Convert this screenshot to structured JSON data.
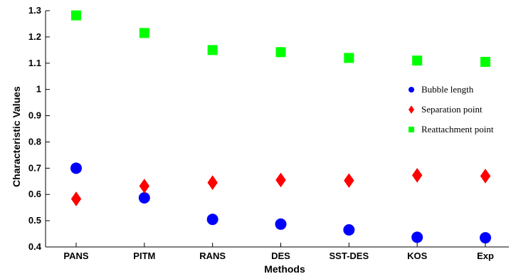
{
  "chart_data": {
    "type": "scatter",
    "xlabel": "Methods",
    "ylabel": "Characteristic Values",
    "categories": [
      "PANS",
      "PITM",
      "RANS",
      "DES",
      "SST-DES",
      "KOS",
      "Exp"
    ],
    "ylim": [
      0.4,
      1.3
    ],
    "yticks": [
      "0.4",
      "0.5",
      "0.6",
      "0.7",
      "0.8",
      "0.9",
      "1",
      "1.1",
      "1.2",
      "1.3"
    ],
    "grid": false,
    "legend_position": "right",
    "series": [
      {
        "name": "Bubble length",
        "marker": "circle",
        "color": "#0000ff",
        "values": [
          0.7,
          0.587,
          0.505,
          0.487,
          0.465,
          0.437,
          0.435
        ]
      },
      {
        "name": "Separation point",
        "marker": "diamond",
        "color": "#ff0000",
        "values": [
          0.583,
          0.632,
          0.645,
          0.655,
          0.653,
          0.673,
          0.67
        ]
      },
      {
        "name": "Reattachment point",
        "marker": "square",
        "color": "#00ff00",
        "values": [
          1.282,
          1.215,
          1.15,
          1.142,
          1.12,
          1.11,
          1.105
        ]
      }
    ]
  }
}
